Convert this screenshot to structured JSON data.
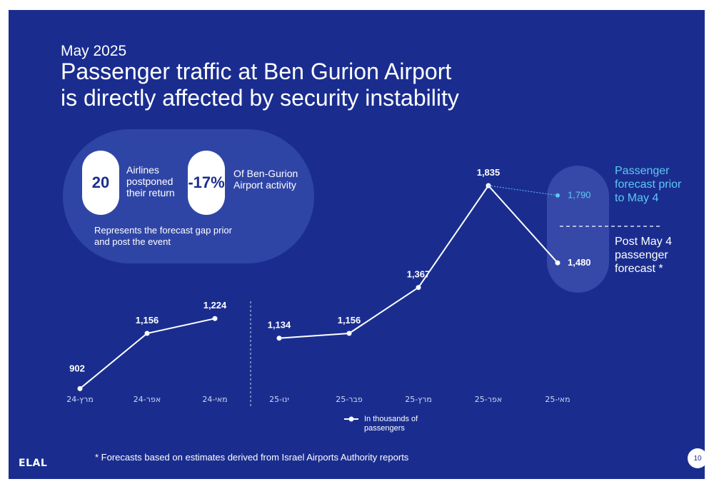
{
  "header": {
    "eyebrow": "May 2025",
    "title_line1": "Passenger traffic at Ben Gurion Airport",
    "title_line2": "is directly affected by security instability"
  },
  "kpis": [
    {
      "value": "20",
      "label": "Airlines postponed their return"
    },
    {
      "value": "-17%",
      "label": "Of Ben-Gurion Airport activity"
    }
  ],
  "kpi_note": "Represents the forecast gap prior and post the event",
  "forecast_labels": {
    "before": "Passenger forecast prior to May 4",
    "after": "Post May 4 passenger forecast *"
  },
  "legend": {
    "label": "In thousands of passengers"
  },
  "footnote": "* Forecasts based on estimates derived from Israel Airports Authority reports",
  "logo": "ELAL",
  "page_number": "10",
  "colors": {
    "background": "#1a2d8f",
    "panel": "#2f45a6",
    "line": "#ffffff",
    "forecast_before": "#5ec8f2"
  },
  "chart_data": [
    {
      "type": "line",
      "categories": [
        "מרץ-24",
        "אפר-24",
        "מאי-24"
      ],
      "series": [
        {
          "values": [
            902,
            1156,
            1224
          ],
          "labels": [
            "902",
            "1,156",
            "1,224"
          ]
        }
      ]
    },
    {
      "type": "line",
      "categories": [
        "ינו-25",
        "פבר-25",
        "מרץ-25",
        "אפר-25",
        "מאי-25"
      ],
      "series": [
        {
          "values": [
            1134,
            1156,
            1367,
            1835,
            1480
          ],
          "labels": [
            "1,134",
            "1,156",
            "1,367",
            "1,835",
            "1,480"
          ]
        },
        {
          "values": [
            null,
            null,
            null,
            1835,
            1790
          ],
          "labels": [
            "",
            "",
            "",
            "",
            "1,790"
          ]
        }
      ]
    }
  ]
}
